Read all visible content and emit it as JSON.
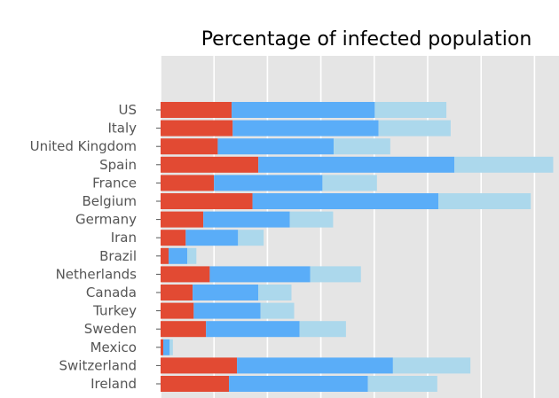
{
  "chart_data": {
    "type": "bar",
    "orientation": "horizontal",
    "stacked": true,
    "title": "Percentage of infected population",
    "categories": [
      "US",
      "Italy",
      "United Kingdom",
      "Spain",
      "France",
      "Belgium",
      "Germany",
      "Iran",
      "Brazil",
      "Netherlands",
      "Canada",
      "Turkey",
      "Sweden",
      "Mexico",
      "Switzerland",
      "Ireland"
    ],
    "series": [
      {
        "color": "#e24a33",
        "values": [
          1.33,
          1.35,
          1.07,
          1.83,
          1.0,
          1.72,
          0.8,
          0.47,
          0.15,
          0.92,
          0.6,
          0.62,
          0.85,
          0.05,
          1.43,
          1.28
        ]
      },
      {
        "color": "#5aadf8",
        "values": [
          2.68,
          2.73,
          2.17,
          3.67,
          2.03,
          3.48,
          1.62,
          0.98,
          0.35,
          1.88,
          1.23,
          1.25,
          1.75,
          0.12,
          2.92,
          2.6
        ]
      },
      {
        "color": "#acd8ec",
        "values": [
          1.34,
          1.35,
          1.06,
          1.85,
          1.02,
          1.73,
          0.81,
          0.48,
          0.17,
          0.95,
          0.62,
          0.63,
          0.87,
          0.06,
          1.45,
          1.3
        ]
      }
    ],
    "xlim": [
      0,
      7.5
    ],
    "grid": true,
    "axes_background": "#e5e5e5",
    "grid_color": "#ffffff"
  }
}
